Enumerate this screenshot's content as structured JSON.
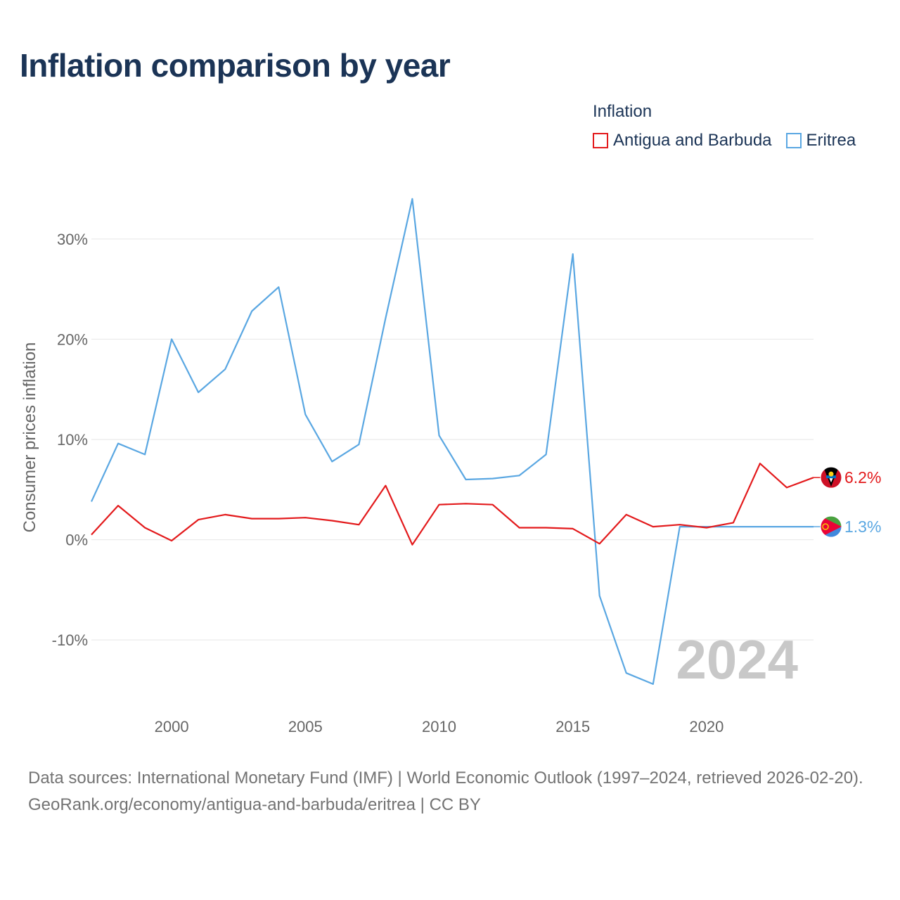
{
  "title": "Inflation comparison by year",
  "legend": {
    "title": "Inflation",
    "items": [
      {
        "label": "Antigua and Barbuda",
        "color": "#e31a1c"
      },
      {
        "label": "Eritrea",
        "color": "#5aa7e2"
      }
    ]
  },
  "chart_data": {
    "type": "line",
    "ylabel": "Consumer prices inflation",
    "xlabel": "",
    "ylim": [
      -17,
      37
    ],
    "xlim": [
      1997,
      2024
    ],
    "yticks": [
      {
        "value": 30,
        "label": "30%"
      },
      {
        "value": 20,
        "label": "20%"
      },
      {
        "value": 10,
        "label": "10%"
      },
      {
        "value": 0,
        "label": "0%"
      },
      {
        "value": -10,
        "label": "-10%"
      }
    ],
    "xticks": [
      {
        "value": 2000,
        "label": "2000"
      },
      {
        "value": 2005,
        "label": "2005"
      },
      {
        "value": 2010,
        "label": "2010"
      },
      {
        "value": 2015,
        "label": "2015"
      },
      {
        "value": 2020,
        "label": "2020"
      }
    ],
    "x": [
      1997,
      1998,
      1999,
      2000,
      2001,
      2002,
      2003,
      2004,
      2005,
      2006,
      2007,
      2008,
      2009,
      2010,
      2011,
      2012,
      2013,
      2014,
      2015,
      2016,
      2017,
      2018,
      2019,
      2020,
      2021,
      2022,
      2023,
      2024
    ],
    "series": [
      {
        "name": "Antigua and Barbuda",
        "color": "#e31a1c",
        "values": [
          0.5,
          3.4,
          1.2,
          -0.1,
          2.0,
          2.5,
          2.1,
          2.1,
          2.2,
          1.9,
          1.5,
          5.4,
          -0.5,
          3.5,
          3.6,
          3.5,
          1.2,
          1.2,
          1.1,
          -0.4,
          2.5,
          1.3,
          1.5,
          1.2,
          1.7,
          7.6,
          5.2,
          6.2
        ],
        "end_label": "6.2%"
      },
      {
        "name": "Eritrea",
        "color": "#5aa7e2",
        "values": [
          3.8,
          9.6,
          8.5,
          20.0,
          14.7,
          17.0,
          22.8,
          25.2,
          12.5,
          7.8,
          9.5,
          22.1,
          34.0,
          10.4,
          6.0,
          6.1,
          6.4,
          8.5,
          28.5,
          -5.6,
          -13.3,
          -14.4,
          1.3,
          1.3,
          1.3,
          1.3,
          1.3,
          1.3
        ],
        "end_label": "1.3%"
      }
    ],
    "year_watermark": "2024"
  },
  "source": {
    "line1": "Data sources: International Monetary Fund (IMF) | World Economic Outlook (1997–2024, retrieved 2026-02-20).",
    "line2": "GeoRank.org/economy/antigua-and-barbuda/eritrea | CC BY"
  }
}
